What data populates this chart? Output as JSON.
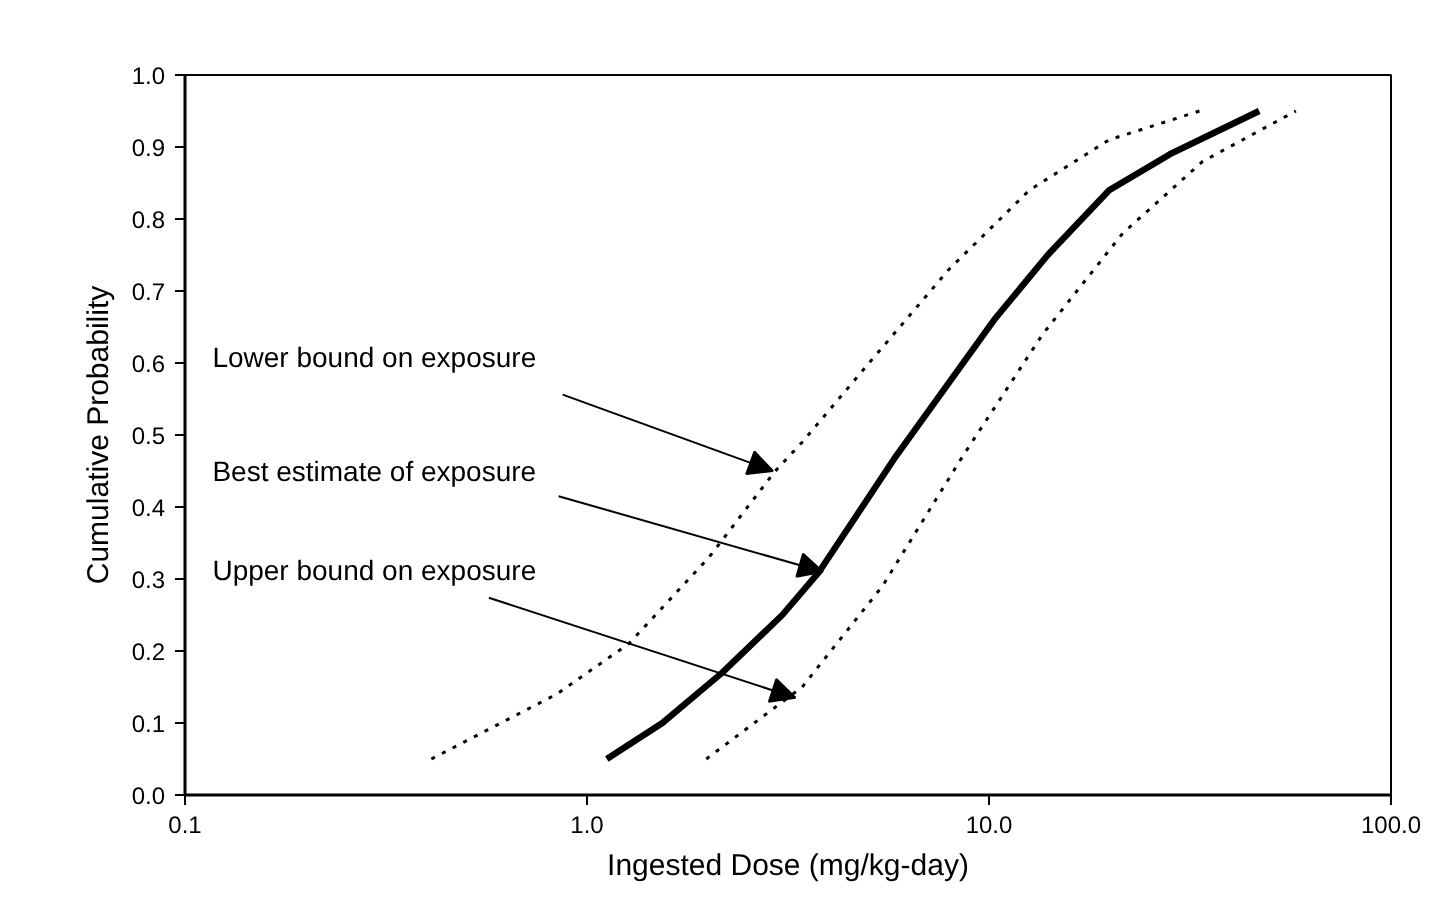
{
  "chart_data": {
    "type": "line",
    "xlabel": "Ingested Dose (mg/kg-day)",
    "ylabel": "Cumulative Probability",
    "log": "x",
    "grid": false,
    "xlim": [
      0.1,
      100
    ],
    "ylim": [
      0,
      1
    ],
    "xticks": [
      {
        "value": 0.1,
        "label": "0.1"
      },
      {
        "value": 1,
        "label": "1.0"
      },
      {
        "value": 10,
        "label": "10.0"
      },
      {
        "value": 100,
        "label": "100.0"
      }
    ],
    "yticks": [
      {
        "value": 0,
        "label": "0.0"
      },
      {
        "value": 0.1,
        "label": "0.1"
      },
      {
        "value": 0.2,
        "label": "0.2"
      },
      {
        "value": 0.3,
        "label": "0.3"
      },
      {
        "value": 0.4,
        "label": "0.4"
      },
      {
        "value": 0.5,
        "label": "0.5"
      },
      {
        "value": 0.6,
        "label": "0.6"
      },
      {
        "value": 0.7,
        "label": "0.7"
      },
      {
        "value": 0.8,
        "label": "0.8"
      },
      {
        "value": 0.9,
        "label": "0.9"
      },
      {
        "value": 1,
        "label": "1.0"
      }
    ],
    "series": [
      {
        "color": "#000000",
        "line_style": "dotted",
        "x": [
          0.41,
          0.84,
          1.27,
          2.01,
          2.94,
          3.43,
          5.03,
          7.95,
          12.6,
          19.9,
          33.4
        ],
        "values": [
          0.05,
          0.14,
          0.21,
          0.33,
          0.45,
          0.49,
          0.6,
          0.73,
          0.84,
          0.91,
          0.95
        ]
      },
      {
        "color": "#000000",
        "line_style": "solid",
        "x": [
          1.12,
          1.54,
          2.17,
          3.06,
          3.78,
          5.86,
          10.3,
          14.0,
          19.9,
          28.2,
          47.0
        ],
        "values": [
          0.05,
          0.1,
          0.17,
          0.25,
          0.31,
          0.47,
          0.66,
          0.75,
          0.84,
          0.89,
          0.95
        ]
      },
      {
        "color": "#000000",
        "line_style": "dotted",
        "x": [
          1.98,
          3.43,
          5.43,
          8.59,
          13.6,
          21.5,
          34.0,
          58.0
        ],
        "values": [
          0.05,
          0.15,
          0.29,
          0.47,
          0.64,
          0.78,
          0.88,
          0.95
        ]
      }
    ],
    "annotations": [
      {
        "text": "Lower bound on exposure",
        "x": 2.9,
        "y": 0.45
      },
      {
        "text": "Best estimate of exposure",
        "x": 3.86,
        "y": 0.31
      },
      {
        "text": "Upper bound on exposure",
        "x": 3.3,
        "y": 0.135
      }
    ]
  }
}
